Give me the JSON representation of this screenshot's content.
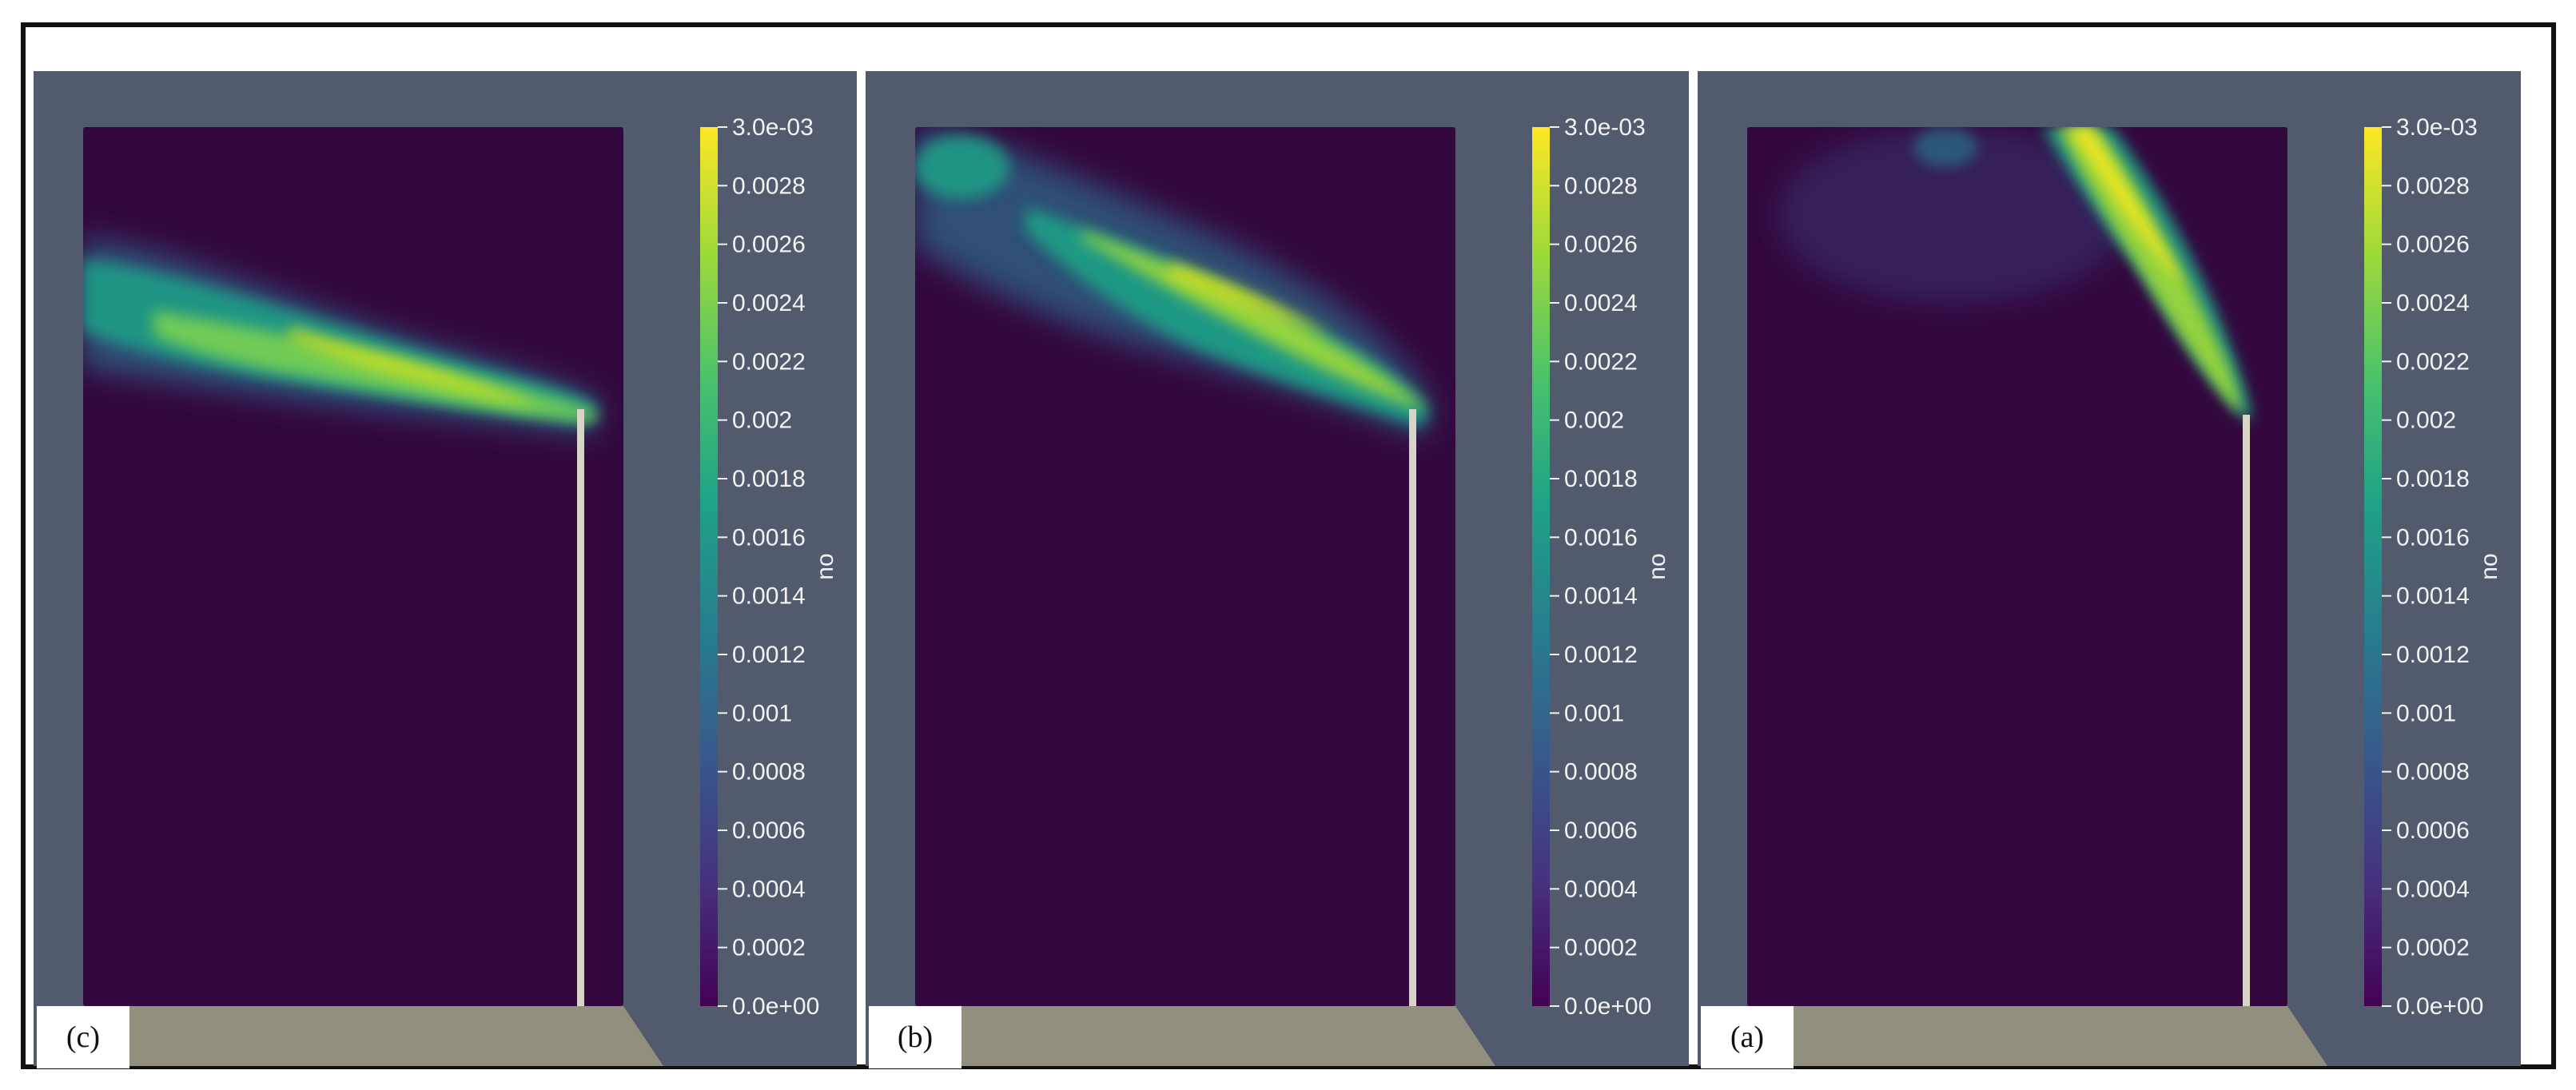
{
  "colorbar": {
    "variable": "no",
    "ticks": [
      "3.0e-03",
      "0.0028",
      "0.0026",
      "0.0024",
      "0.0022",
      "0.002",
      "0.0018",
      "0.0016",
      "0.0014",
      "0.0012",
      "0.001",
      "0.0008",
      "0.0006",
      "0.0004",
      "0.0002",
      "0.0e+00"
    ],
    "range": [
      0,
      0.003
    ],
    "colormap": "viridis"
  },
  "colors": {
    "background": "#525a6e",
    "domain": "#33083f",
    "ground": "#938f7e",
    "stack": "#d8d4c8"
  },
  "panels": [
    {
      "label": "(c)",
      "plume_direction": "low angle, toward left",
      "peak": 0.0028
    },
    {
      "label": "(b)",
      "plume_direction": "medium angle, toward upper left",
      "peak": 0.0028
    },
    {
      "label": "(a)",
      "plume_direction": "steep, nearly vertical",
      "peak": 0.003
    }
  ]
}
